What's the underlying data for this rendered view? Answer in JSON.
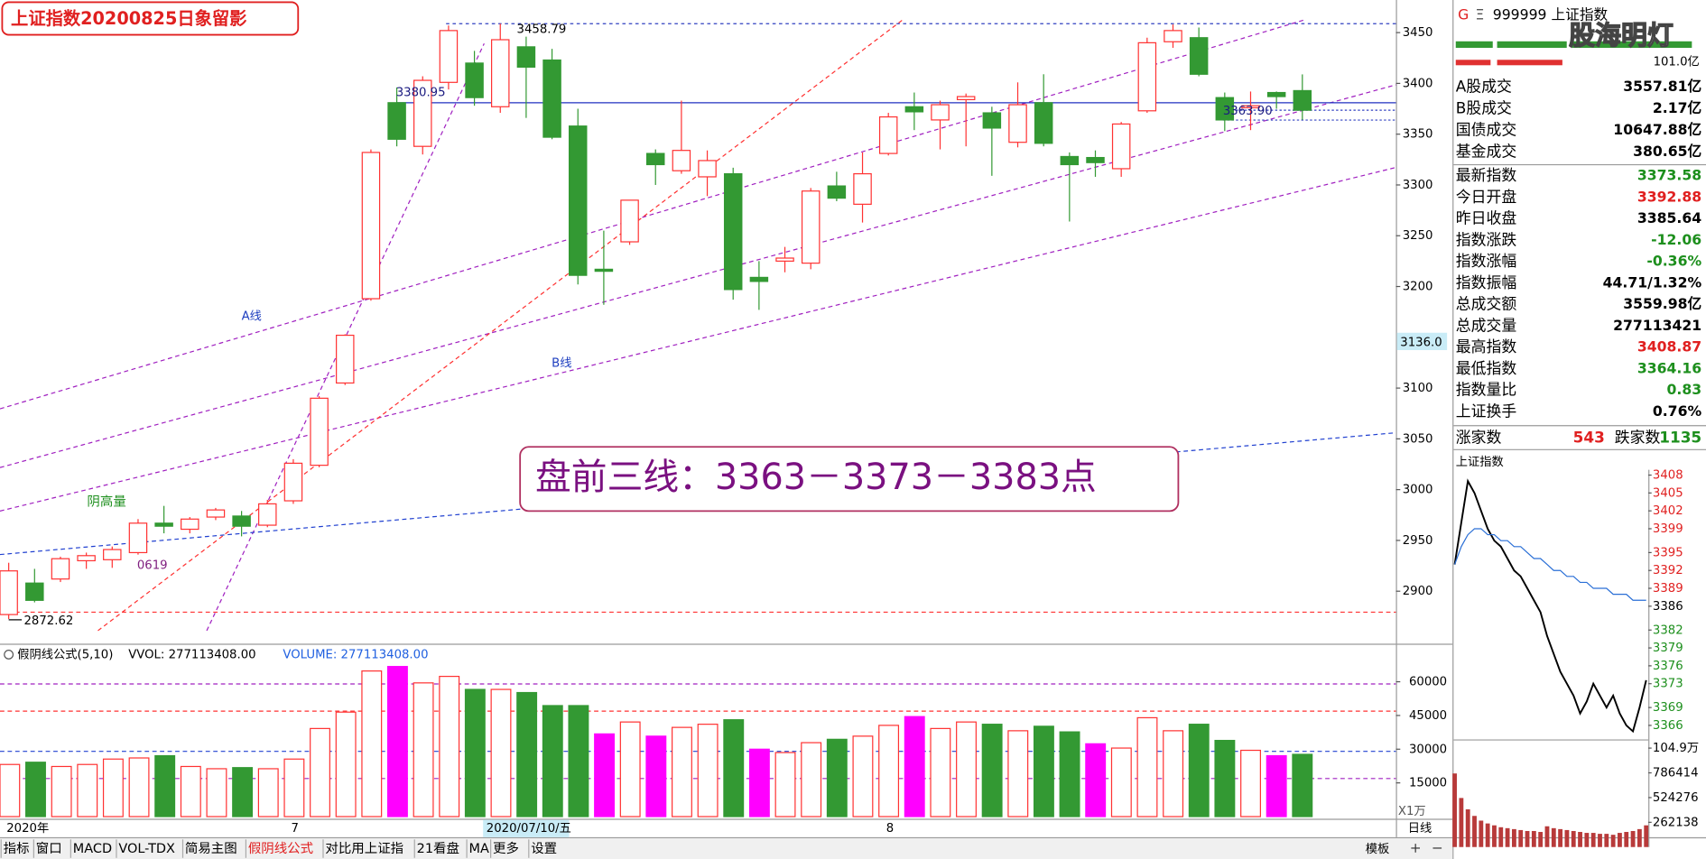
{
  "title": "上证指数20200825日象留影",
  "chart_data": [
    {
      "type": "candlestick",
      "categories": [
        "2020年",
        null,
        null,
        null,
        null,
        null,
        null,
        null,
        null,
        null,
        null,
        "7",
        null,
        null,
        null,
        null,
        null,
        null,
        null,
        null,
        null,
        null,
        null,
        null,
        null,
        null,
        null,
        null,
        null,
        null,
        null,
        null,
        null,
        null,
        "8",
        null,
        null,
        null,
        null,
        null,
        null,
        null,
        null,
        null,
        null,
        null,
        null,
        null,
        null,
        null,
        null
      ],
      "open": [
        2877,
        2908,
        2912,
        2930,
        2931,
        2938,
        2967,
        2961,
        2973,
        2974,
        2965,
        2989,
        3024,
        3105,
        3188,
        3381,
        3338,
        3401,
        3420,
        3377,
        3436,
        3423,
        3358,
        3217,
        3244,
        3331,
        3314,
        3308,
        3311,
        3209,
        3225,
        3223,
        3299,
        3281,
        3331,
        3377,
        3364,
        3384,
        3371,
        3342,
        3381,
        3328,
        3327,
        3316,
        3373,
        3441,
        3445,
        3386,
        3376,
        3391,
        3392.88
      ],
      "high": [
        2928,
        2922,
        2934,
        2938,
        2944,
        2971,
        2984,
        2973,
        2982,
        2979,
        2990,
        3030,
        3092,
        3153,
        3335,
        3396,
        3407,
        3457,
        3432,
        3458.79,
        3446,
        3434,
        3375,
        3255,
        3285,
        3335,
        3383,
        3334,
        3317,
        3225,
        3239,
        3297,
        3313,
        3332,
        3371,
        3391,
        3383,
        3390,
        3377,
        3401,
        3409,
        3332,
        3334,
        3362,
        3445,
        3458,
        3455,
        3391,
        3392,
        3392,
        3408.87
      ],
      "low": [
        2872.62,
        2889,
        2909,
        2922,
        2923,
        2936,
        2957,
        2957,
        2970,
        2954,
        2963,
        2986,
        3022,
        3103,
        3186,
        3338,
        3330,
        3394,
        3378,
        3371,
        3366,
        3345,
        3202,
        3182,
        3241,
        3300,
        3311,
        3289,
        3187,
        3177,
        3214,
        3217,
        3284,
        3263,
        3329,
        3354,
        3335,
        3338,
        3309,
        3337,
        3338,
        3264,
        3308,
        3308,
        3371,
        3435,
        3407,
        3353,
        3354,
        3375,
        3364.16
      ],
      "close": [
        2920,
        2891,
        2932,
        2935,
        2941,
        2967,
        2964,
        2971,
        2980,
        2964,
        2986,
        3026,
        3090,
        3152,
        3332,
        3345,
        3403,
        3452,
        3386,
        3443,
        3416,
        3347,
        3211,
        3215,
        3285,
        3320,
        3334,
        3324,
        3197,
        3205,
        3228,
        3294,
        3287,
        3311,
        3367,
        3372,
        3379,
        3387,
        3356,
        3379,
        3341,
        3320,
        3322,
        3360,
        3440,
        3452,
        3409,
        3364,
        3378,
        3387,
        3373.58
      ],
      "up_color": "#ff3232",
      "down_color": "#339933",
      "ylim": [
        2848.3,
        3482.1
      ],
      "yticks": [
        2900,
        2950,
        3000,
        3050,
        3100,
        3200,
        3250,
        3300,
        3350,
        3400,
        3450
      ],
      "levels": [
        3458.79,
        3380.95,
        3373.58,
        3363.9
      ],
      "annotations": [
        "3458.79",
        "3380.95",
        "3363.90",
        "2872.62",
        "A线",
        "B线",
        "阴高量",
        "0619",
        "盘前三线：3363－3373－3383点"
      ]
    },
    {
      "type": "bar",
      "title": "假阴线公式(5,10)",
      "legend": [
        "VVOL: 277113408.00",
        "VOLUME: 277113408.00"
      ],
      "unit_label": "X1万",
      "values": [
        23200,
        24200,
        22300,
        23200,
        25600,
        26100,
        27100,
        22300,
        21300,
        21800,
        21300,
        25600,
        39200,
        46500,
        64800,
        66800,
        59500,
        62400,
        56600,
        56600,
        55200,
        49400,
        49400,
        36800,
        42100,
        35800,
        39700,
        41100,
        43100,
        30000,
        28500,
        32900,
        34400,
        35800,
        40600,
        44500,
        39200,
        42100,
        41100,
        38200,
        40200,
        37700,
        32400,
        30500,
        44000,
        38200,
        41100,
        33900,
        29500,
        27100,
        27711.34
      ],
      "colors": [
        "#ff3232",
        "#339933",
        "#ff3232",
        "#ff3232",
        "#ff3232",
        "#ff3232",
        "#339933",
        "#ff3232",
        "#ff3232",
        "#339933",
        "#ff3232",
        "#ff3232",
        "#ff3232",
        "#ff3232",
        "#ff3232",
        "#ff00ff",
        "#ff3232",
        "#ff3232",
        "#339933",
        "#ff3232",
        "#339933",
        "#339933",
        "#339933",
        "#ff00ff",
        "#ff3232",
        "#ff00ff",
        "#ff3232",
        "#ff3232",
        "#339933",
        "#ff00ff",
        "#ff3232",
        "#ff3232",
        "#339933",
        "#ff3232",
        "#ff3232",
        "#ff00ff",
        "#ff3232",
        "#ff3232",
        "#339933",
        "#ff3232",
        "#339933",
        "#339933",
        "#ff00ff",
        "#ff3232",
        "#ff3232",
        "#ff3232",
        "#339933",
        "#339933",
        "#ff3232",
        "#ff00ff",
        "#339933"
      ],
      "hollow_color": "#ff3232",
      "ylim": [
        0,
        75970
      ],
      "yticks": [
        15000,
        30000,
        45000,
        60000
      ]
    },
    {
      "type": "line",
      "title": "上证指数",
      "series": [
        {
          "color": "#000000",
          "values": [
            3393,
            3400,
            3407,
            3405,
            3402,
            3399,
            3397,
            3396,
            3394,
            3392,
            3391,
            3389,
            3387,
            3385,
            3381,
            3378,
            3375,
            3373,
            3371,
            3368,
            3370,
            3373,
            3371,
            3369,
            3371,
            3368,
            3366,
            3365,
            3369,
            3373.58
          ]
        },
        {
          "color": "#2a6fd6",
          "values": [
            3393,
            3396,
            3398,
            3399,
            3399,
            3398,
            3398,
            3397,
            3397,
            3396,
            3396,
            3395,
            3394,
            3394,
            3393,
            3392,
            3392,
            3391,
            3391,
            3390,
            3390,
            3389,
            3389,
            3389,
            3388,
            3388,
            3388,
            3387,
            3387,
            3387
          ]
        }
      ],
      "ylim": [
        3364.2,
        3408.9
      ],
      "yticks": [
        3408,
        3405,
        3402,
        3399,
        3395,
        3392,
        3389,
        3386,
        3382,
        3379,
        3376,
        3373,
        3369,
        3366
      ],
      "ytick_colors": [
        "#e02020",
        "#e02020",
        "#e02020",
        "#e02020",
        "#e02020",
        "#e02020",
        "#e02020",
        "#000000",
        "#1d8f1d",
        "#1d8f1d",
        "#1d8f1d",
        "#1d8f1d",
        "#1d8f1d",
        "#1d8f1d"
      ]
    },
    {
      "type": "bar",
      "values": [
        780000,
        520000,
        400000,
        330000,
        280000,
        250000,
        230000,
        210000,
        200000,
        190000,
        180000,
        170000,
        170000,
        160000,
        220000,
        200000,
        190000,
        180000,
        170000,
        160000,
        150000,
        150000,
        140000,
        140000,
        130000,
        150000,
        160000,
        170000,
        190000,
        230000
      ],
      "color": "#b83a3a",
      "ylim": [
        0,
        1049000
      ],
      "yticks": [
        262138,
        524276,
        786414,
        {
          "value": 1049000,
          "label": "104.9万"
        }
      ]
    }
  ],
  "ui": {
    "cursor_price": "3136.0",
    "cursor_date": "2020/07/10/五",
    "period": "日线",
    "tabs": [
      "指标",
      "窗口",
      "MACD",
      "VOL-TDX",
      "简易主图",
      "假阴线公式",
      "对比用上证指",
      "21看盘",
      "MA",
      "更多",
      "设置"
    ],
    "template": "模板"
  },
  "panel": {
    "code_mark": "G",
    "menu_mark": "Ξ",
    "name": "999999 上证指数",
    "watermark": "股海明灯",
    "amount": "101.0亿",
    "rows": [
      {
        "label": "A股成交",
        "value": "3557.81亿",
        "color": "#000000"
      },
      {
        "label": "B股成交",
        "value": "2.17亿",
        "color": "#000000"
      },
      {
        "label": "国债成交",
        "value": "10647.88亿",
        "color": "#000000"
      },
      {
        "label": "基金成交",
        "value": "380.65亿",
        "color": "#000000"
      },
      {
        "label": "最新指数",
        "value": "3373.58",
        "color": "#1d8f1d"
      },
      {
        "label": "今日开盘",
        "value": "3392.88",
        "color": "#e02020"
      },
      {
        "label": "昨日收盘",
        "value": "3385.64",
        "color": "#000000"
      },
      {
        "label": "指数涨跌",
        "value": "-12.06",
        "color": "#1d8f1d"
      },
      {
        "label": "指数涨幅",
        "value": "-0.36%",
        "color": "#1d8f1d"
      },
      {
        "label": "指数振幅",
        "value": "44.71/1.32%",
        "color": "#000000"
      },
      {
        "label": "总成交额",
        "value": "3559.98亿",
        "color": "#000000"
      },
      {
        "label": "总成交量",
        "value": "277113421",
        "color": "#000000"
      },
      {
        "label": "最高指数",
        "value": "3408.87",
        "color": "#e02020"
      },
      {
        "label": "最低指数",
        "value": "3364.16",
        "color": "#1d8f1d"
      },
      {
        "label": "指数量比",
        "value": "0.83",
        "color": "#1d8f1d"
      },
      {
        "label": "上证换手",
        "value": "0.76%",
        "color": "#000000"
      }
    ],
    "up_label": "涨家数",
    "up_count": "543",
    "down_label": "跌家数",
    "down_count": "1135"
  }
}
